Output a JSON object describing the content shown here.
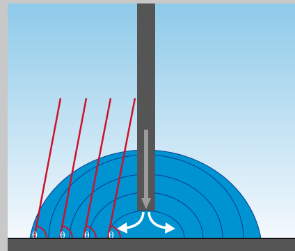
{
  "figure": {
    "angle_symbol": "θ",
    "angle_markers": [
      {
        "id": 1,
        "label": "θ"
      },
      {
        "id": 2,
        "label": "θ"
      },
      {
        "id": 3,
        "label": "θ"
      },
      {
        "id": 4,
        "label": "θ"
      }
    ],
    "colors": {
      "sky_top": "#8ecae9",
      "sky_bottom": "#f4f9fd",
      "frame": "#c8c8c8",
      "drop": "#0093d1",
      "contour": "#0a3b8c",
      "needle": "#555555",
      "needle_arrow": "#9c9c9c",
      "spread_arrow": "#ffffff",
      "tangent_line": "#d0102a",
      "substrate": "#555555",
      "substrate_edge": "#111111"
    },
    "icons": [
      "needle",
      "flow-arrow",
      "spread-arrows",
      "tangent-lines",
      "angle-arcs"
    ]
  }
}
